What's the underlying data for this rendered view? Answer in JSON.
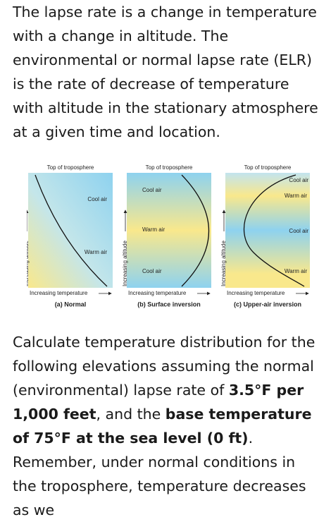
{
  "intro": "The lapse rate is a change in temperature with a change in altitude. The environmental or normal lapse rate (ELR) is the rate of decrease of temperature with altitude in the stationary atmosphere at a given time and location.",
  "figure": {
    "panels": [
      {
        "top_label": "Top of troposphere",
        "labels": [
          "Cool air",
          "Warm air"
        ],
        "y_axis": "Increasing altitude",
        "x_axis": "Increasing temperature",
        "caption": "(a) Normal"
      },
      {
        "top_label": "Top of troposphere",
        "labels": [
          "Cool air",
          "Warm air",
          "Cool air"
        ],
        "y_axis": "Increasing altitude",
        "x_axis": "Increasing temperature",
        "caption": "(b) Surface inversion"
      },
      {
        "top_label": "Top of troposphere",
        "labels": [
          "Cool air",
          "Warm air",
          "Cool air",
          "Warm air"
        ],
        "y_axis": "Increasing altitude",
        "x_axis": "Increasing temperature",
        "caption": "(c) Upper-air inversion"
      }
    ]
  },
  "question": {
    "runs": [
      {
        "text": "Calculate temperature distribution for the following elevations assuming the normal (environmental) lapse rate of ",
        "bold": false
      },
      {
        "text": "3.5°F per 1,000 feet",
        "bold": true
      },
      {
        "text": ", and the ",
        "bold": false
      },
      {
        "text": "base temperature of 75°F at the sea level (0 ft)",
        "bold": true
      },
      {
        "text": ". Remember, under normal conditions in the troposphere, temperature decreases as we",
        "bold": false
      }
    ]
  }
}
